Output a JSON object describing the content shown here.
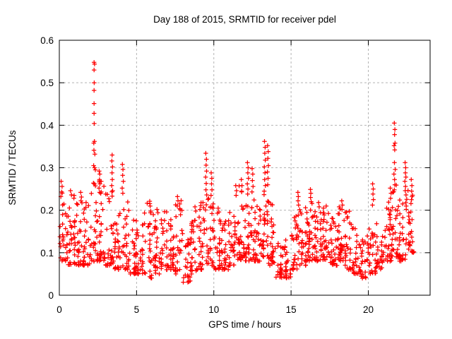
{
  "chart_data": {
    "type": "scatter",
    "title": "Day 188 of 2015, SRMTID for receiver pdel",
    "xlabel": "GPS time / hours",
    "ylabel": "SRMTID / TECUs",
    "xlim": [
      0,
      24
    ],
    "ylim": [
      0,
      0.6
    ],
    "xticks": [
      0,
      5,
      10,
      15,
      20
    ],
    "xtick_labels": [
      "0",
      "5",
      "10",
      "15",
      "20"
    ],
    "yticks": [
      0,
      0.1,
      0.2,
      0.3,
      0.4,
      0.5,
      0.6
    ],
    "ytick_labels": [
      "0",
      "0.1",
      "0.2",
      "0.3",
      "0.4",
      "0.5",
      "0.6"
    ],
    "grid": "dashed",
    "legend": "none",
    "marker": "plus",
    "marker_color": "#ff0000",
    "grid_color": "#b4b4b4",
    "border_color": "#000000",
    "skew": 1.8,
    "band_bins": [
      [
        0.0,
        0.5,
        0.08,
        0.26,
        30
      ],
      [
        0.5,
        1.0,
        0.07,
        0.24,
        30
      ],
      [
        1.0,
        1.5,
        0.07,
        0.22,
        30
      ],
      [
        1.5,
        2.0,
        0.07,
        0.22,
        30
      ],
      [
        2.0,
        2.5,
        0.08,
        0.3,
        32
      ],
      [
        2.5,
        3.0,
        0.08,
        0.28,
        32
      ],
      [
        3.0,
        3.5,
        0.07,
        0.26,
        30
      ],
      [
        3.5,
        4.0,
        0.06,
        0.24,
        30
      ],
      [
        4.0,
        4.5,
        0.06,
        0.22,
        28
      ],
      [
        4.5,
        5.0,
        0.05,
        0.18,
        28
      ],
      [
        5.0,
        5.5,
        0.05,
        0.17,
        28
      ],
      [
        5.5,
        6.0,
        0.04,
        0.22,
        28
      ],
      [
        6.0,
        6.5,
        0.05,
        0.19,
        28
      ],
      [
        6.5,
        7.0,
        0.06,
        0.2,
        28
      ],
      [
        7.0,
        7.5,
        0.06,
        0.18,
        28
      ],
      [
        7.5,
        8.0,
        0.05,
        0.23,
        28
      ],
      [
        8.0,
        8.5,
        0.03,
        0.14,
        26
      ],
      [
        8.5,
        9.0,
        0.05,
        0.18,
        28
      ],
      [
        9.0,
        9.5,
        0.06,
        0.22,
        28
      ],
      [
        9.5,
        10.0,
        0.07,
        0.23,
        30
      ],
      [
        10.0,
        10.5,
        0.06,
        0.2,
        30
      ],
      [
        10.5,
        11.0,
        0.06,
        0.18,
        28
      ],
      [
        11.0,
        11.5,
        0.07,
        0.21,
        30
      ],
      [
        11.5,
        12.0,
        0.08,
        0.26,
        32
      ],
      [
        12.0,
        12.5,
        0.08,
        0.24,
        32
      ],
      [
        12.5,
        13.0,
        0.08,
        0.23,
        32
      ],
      [
        13.0,
        13.5,
        0.09,
        0.24,
        32
      ],
      [
        13.5,
        14.0,
        0.07,
        0.22,
        30
      ],
      [
        14.0,
        14.5,
        0.04,
        0.13,
        26
      ],
      [
        14.5,
        15.0,
        0.04,
        0.13,
        26
      ],
      [
        15.0,
        15.5,
        0.06,
        0.2,
        30
      ],
      [
        15.5,
        16.0,
        0.07,
        0.21,
        30
      ],
      [
        16.0,
        16.5,
        0.08,
        0.22,
        32
      ],
      [
        16.5,
        17.0,
        0.08,
        0.2,
        32
      ],
      [
        17.0,
        17.5,
        0.08,
        0.21,
        32
      ],
      [
        17.5,
        18.0,
        0.07,
        0.2,
        32
      ],
      [
        18.0,
        18.5,
        0.08,
        0.21,
        32
      ],
      [
        18.5,
        19.0,
        0.06,
        0.2,
        30
      ],
      [
        19.0,
        19.5,
        0.05,
        0.17,
        28
      ],
      [
        19.5,
        20.0,
        0.04,
        0.14,
        26
      ],
      [
        20.0,
        20.5,
        0.05,
        0.16,
        28
      ],
      [
        20.5,
        21.0,
        0.06,
        0.17,
        28
      ],
      [
        21.0,
        21.5,
        0.08,
        0.22,
        30
      ],
      [
        21.5,
        22.0,
        0.09,
        0.26,
        32
      ],
      [
        22.0,
        22.5,
        0.08,
        0.24,
        30
      ],
      [
        22.5,
        22.95,
        0.1,
        0.25,
        28
      ]
    ],
    "spike_points": [
      [
        0.12,
        0.268
      ],
      [
        0.18,
        0.256
      ],
      [
        0.15,
        0.243
      ],
      [
        0.1,
        0.232
      ],
      [
        0.72,
        0.246
      ],
      [
        0.78,
        0.236
      ],
      [
        1.38,
        0.242
      ],
      [
        1.43,
        0.231
      ],
      [
        1.4,
        0.222
      ],
      [
        2.25,
        0.548
      ],
      [
        2.28,
        0.544
      ],
      [
        2.25,
        0.53
      ],
      [
        2.26,
        0.5
      ],
      [
        2.25,
        0.482
      ],
      [
        2.25,
        0.451
      ],
      [
        2.25,
        0.428
      ],
      [
        2.26,
        0.404
      ],
      [
        2.27,
        0.362
      ],
      [
        2.23,
        0.358
      ],
      [
        2.24,
        0.341
      ],
      [
        2.3,
        0.332
      ],
      [
        2.22,
        0.305
      ],
      [
        2.28,
        0.3
      ],
      [
        2.33,
        0.295
      ],
      [
        2.58,
        0.292
      ],
      [
        2.62,
        0.285
      ],
      [
        2.6,
        0.272
      ],
      [
        2.63,
        0.262
      ],
      [
        2.57,
        0.252
      ],
      [
        2.61,
        0.242
      ],
      [
        3.42,
        0.33
      ],
      [
        3.4,
        0.316
      ],
      [
        3.44,
        0.302
      ],
      [
        3.41,
        0.288
      ],
      [
        3.43,
        0.272
      ],
      [
        3.39,
        0.258
      ],
      [
        3.45,
        0.246
      ],
      [
        3.42,
        0.233
      ],
      [
        4.08,
        0.308
      ],
      [
        4.12,
        0.296
      ],
      [
        4.1,
        0.282
      ],
      [
        4.14,
        0.268
      ],
      [
        4.07,
        0.252
      ],
      [
        4.11,
        0.24
      ],
      [
        5.85,
        0.221
      ],
      [
        5.88,
        0.21
      ],
      [
        6.32,
        0.202
      ],
      [
        6.38,
        0.194
      ],
      [
        7.65,
        0.232
      ],
      [
        7.68,
        0.222
      ],
      [
        7.63,
        0.21
      ],
      [
        8.78,
        0.208
      ],
      [
        8.83,
        0.198
      ],
      [
        9.3,
        0.218
      ],
      [
        9.34,
        0.206
      ],
      [
        9.48,
        0.334
      ],
      [
        9.52,
        0.32
      ],
      [
        9.5,
        0.306
      ],
      [
        9.53,
        0.292
      ],
      [
        9.47,
        0.278
      ],
      [
        9.51,
        0.263
      ],
      [
        9.49,
        0.248
      ],
      [
        9.54,
        0.236
      ],
      [
        9.83,
        0.288
      ],
      [
        9.87,
        0.275
      ],
      [
        9.85,
        0.262
      ],
      [
        9.88,
        0.248
      ],
      [
        9.82,
        0.235
      ],
      [
        10.28,
        0.205
      ],
      [
        10.33,
        0.196
      ],
      [
        11.42,
        0.258
      ],
      [
        11.47,
        0.246
      ],
      [
        11.44,
        0.235
      ],
      [
        11.78,
        0.272
      ],
      [
        11.82,
        0.258
      ],
      [
        11.8,
        0.245
      ],
      [
        12.18,
        0.312
      ],
      [
        12.22,
        0.3
      ],
      [
        12.2,
        0.288
      ],
      [
        12.24,
        0.275
      ],
      [
        12.17,
        0.262
      ],
      [
        12.21,
        0.25
      ],
      [
        12.19,
        0.238
      ],
      [
        12.48,
        0.298
      ],
      [
        12.52,
        0.285
      ],
      [
        12.5,
        0.27
      ],
      [
        12.54,
        0.256
      ],
      [
        12.47,
        0.243
      ],
      [
        13.28,
        0.362
      ],
      [
        13.32,
        0.348
      ],
      [
        13.3,
        0.334
      ],
      [
        13.33,
        0.318
      ],
      [
        13.27,
        0.302
      ],
      [
        13.31,
        0.288
      ],
      [
        13.29,
        0.272
      ],
      [
        13.34,
        0.258
      ],
      [
        13.26,
        0.245
      ],
      [
        13.48,
        0.352
      ],
      [
        13.52,
        0.338
      ],
      [
        13.5,
        0.322
      ],
      [
        13.53,
        0.305
      ],
      [
        13.47,
        0.29
      ],
      [
        13.51,
        0.275
      ],
      [
        13.49,
        0.26
      ],
      [
        15.44,
        0.242
      ],
      [
        15.47,
        0.232
      ],
      [
        15.45,
        0.222
      ],
      [
        15.49,
        0.212
      ],
      [
        16.25,
        0.249
      ],
      [
        16.28,
        0.24
      ],
      [
        16.26,
        0.23
      ],
      [
        16.3,
        0.22
      ],
      [
        16.78,
        0.218
      ],
      [
        16.82,
        0.208
      ],
      [
        18.28,
        0.222
      ],
      [
        18.32,
        0.212
      ],
      [
        18.3,
        0.202
      ],
      [
        20.28,
        0.262
      ],
      [
        20.32,
        0.25
      ],
      [
        20.3,
        0.238
      ],
      [
        20.33,
        0.225
      ],
      [
        20.27,
        0.212
      ],
      [
        21.42,
        0.252
      ],
      [
        21.47,
        0.24
      ],
      [
        21.44,
        0.228
      ],
      [
        21.68,
        0.405
      ],
      [
        21.72,
        0.39
      ],
      [
        21.7,
        0.378
      ],
      [
        21.73,
        0.358
      ],
      [
        21.67,
        0.352
      ],
      [
        21.71,
        0.342
      ],
      [
        21.69,
        0.312
      ],
      [
        21.74,
        0.296
      ],
      [
        21.66,
        0.285
      ],
      [
        21.7,
        0.272
      ],
      [
        21.72,
        0.26
      ],
      [
        21.68,
        0.248
      ],
      [
        22.38,
        0.312
      ],
      [
        22.42,
        0.3
      ],
      [
        22.4,
        0.288
      ],
      [
        22.43,
        0.278
      ],
      [
        22.37,
        0.268
      ],
      [
        22.41,
        0.256
      ],
      [
        22.39,
        0.246
      ],
      [
        22.44,
        0.236
      ],
      [
        22.78,
        0.272
      ],
      [
        22.82,
        0.258
      ],
      [
        22.8,
        0.245
      ],
      [
        22.83,
        0.232
      ]
    ]
  }
}
